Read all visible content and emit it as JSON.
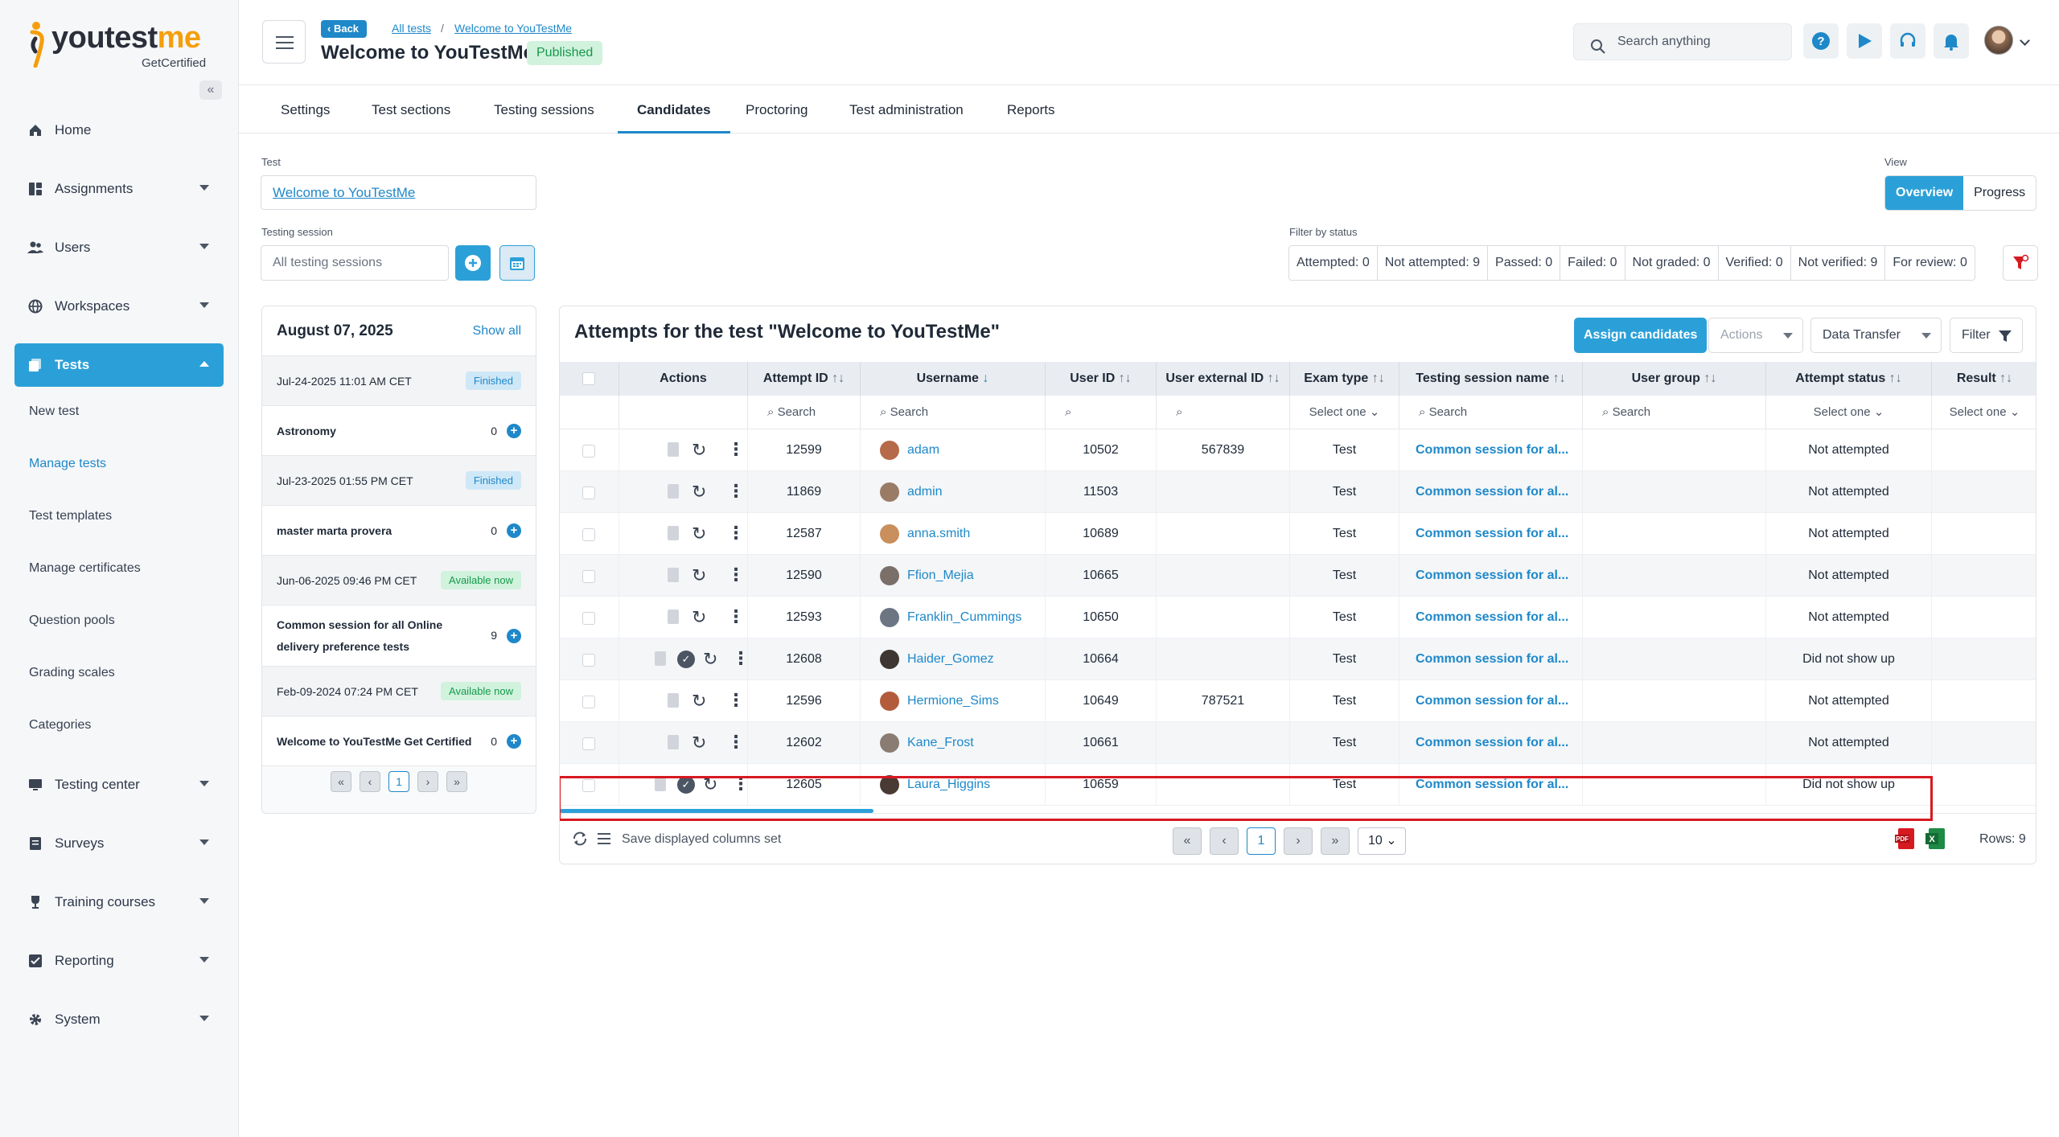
{
  "brand": {
    "name_a": "youtest",
    "name_b": "me",
    "sub": "GetCertified"
  },
  "sidebar": {
    "items": [
      {
        "label": "Home",
        "icon": "home-icon"
      },
      {
        "label": "Assignments",
        "icon": "assignments-icon"
      },
      {
        "label": "Users",
        "icon": "users-icon"
      },
      {
        "label": "Workspaces",
        "icon": "globe-icon"
      },
      {
        "label": "Tests",
        "icon": "tests-icon"
      }
    ],
    "tests_sub": [
      "New test",
      "Manage tests",
      "Test templates",
      "Manage certificates",
      "Question pools",
      "Grading scales",
      "Categories"
    ],
    "items_after": [
      {
        "label": "Testing center",
        "icon": "monitor-icon"
      },
      {
        "label": "Surveys",
        "icon": "survey-icon"
      },
      {
        "label": "Training courses",
        "icon": "trophy-icon"
      },
      {
        "label": "Reporting",
        "icon": "reporting-icon"
      },
      {
        "label": "System",
        "icon": "gear-icon"
      }
    ]
  },
  "header": {
    "back": "Back",
    "crumb1": "All tests",
    "crumb2": "Welcome to YouTestMe",
    "title": "Welcome to YouTestMe",
    "badge": "Published",
    "search_placeholder": "Search anything"
  },
  "tabs": [
    "Settings",
    "Test sections",
    "Testing sessions",
    "Candidates",
    "Proctoring",
    "Test administration",
    "Reports"
  ],
  "form": {
    "test_label": "Test",
    "test_value": "Welcome to YouTestMe",
    "session_label": "Testing session",
    "session_placeholder": "All testing sessions",
    "view_label": "View",
    "view_overview": "Overview",
    "view_progress": "Progress",
    "filter_label": "Filter by status",
    "statuses": [
      "Attempted: 0",
      "Not attempted: 9",
      "Passed: 0",
      "Failed: 0",
      "Not graded: 0",
      "Verified: 0",
      "Not verified: 9",
      "For review: 0"
    ]
  },
  "panel": {
    "date": "August 07, 2025",
    "show_all": "Show all",
    "sessions": [
      {
        "date": "Jul-24-2025 11:01 AM CET",
        "status": "Finished",
        "name": "Astronomy",
        "count": "0"
      },
      {
        "date": "Jul-23-2025 01:55 PM CET",
        "status": "Finished",
        "name": "master marta provera",
        "count": "0"
      },
      {
        "date": "Jun-06-2025 09:46 PM CET",
        "status": "Available now",
        "name": "Common session for all Online delivery preference tests",
        "count": "9"
      },
      {
        "date": "Feb-09-2024 07:24 PM CET",
        "status": "Available now",
        "name": "Welcome to YouTestMe Get Certified",
        "count": "0"
      }
    ],
    "page": "1"
  },
  "table": {
    "title": "Attempts for the test \"Welcome to YouTestMe\"",
    "assign": "Assign candidates",
    "actions": "Actions",
    "data_transfer": "Data Transfer",
    "filter": "Filter",
    "columns": [
      "Actions",
      "Attempt ID",
      "Username",
      "User ID",
      "User external ID",
      "Exam type",
      "Testing session name",
      "User group",
      "Attempt status",
      "Result"
    ],
    "search_placeholder": "Search",
    "select_one": "Select one",
    "rows": [
      {
        "attempt": "12599",
        "username": "adam",
        "user_id": "10502",
        "ext_id": "567839",
        "type": "Test",
        "session": "Common session for al...",
        "group": "",
        "status": "Not attempted",
        "graded": false,
        "avatar": "#b56a4a"
      },
      {
        "attempt": "11869",
        "username": "admin",
        "user_id": "11503",
        "ext_id": "",
        "type": "Test",
        "session": "Common session for al...",
        "group": "",
        "status": "Not attempted",
        "graded": false,
        "avatar": "#9a7b66"
      },
      {
        "attempt": "12587",
        "username": "anna.smith",
        "user_id": "10689",
        "ext_id": "",
        "type": "Test",
        "session": "Common session for al...",
        "group": "",
        "status": "Not attempted",
        "graded": false,
        "avatar": "#c98f5c"
      },
      {
        "attempt": "12590",
        "username": "Ffion_Mejia",
        "user_id": "10665",
        "ext_id": "",
        "type": "Test",
        "session": "Common session for al...",
        "group": "",
        "status": "Not attempted",
        "graded": false,
        "avatar": "#7b6f6a"
      },
      {
        "attempt": "12593",
        "username": "Franklin_Cummings",
        "user_id": "10650",
        "ext_id": "",
        "type": "Test",
        "session": "Common session for al...",
        "group": "",
        "status": "Not attempted",
        "graded": false,
        "avatar": "#6c7582"
      },
      {
        "attempt": "12608",
        "username": "Haider_Gomez",
        "user_id": "10664",
        "ext_id": "",
        "type": "Test",
        "session": "Common session for al...",
        "group": "",
        "status": "Did not show up",
        "graded": true,
        "avatar": "#3e3630"
      },
      {
        "attempt": "12596",
        "username": "Hermione_Sims",
        "user_id": "10649",
        "ext_id": "787521",
        "type": "Test",
        "session": "Common session for al...",
        "group": "",
        "status": "Not attempted",
        "graded": false,
        "avatar": "#b35c3c"
      },
      {
        "attempt": "12602",
        "username": "Kane_Frost",
        "user_id": "10661",
        "ext_id": "",
        "type": "Test",
        "session": "Common session for al...",
        "group": "",
        "status": "Not attempted",
        "graded": false,
        "avatar": "#8a7c72"
      },
      {
        "attempt": "12605",
        "username": "Laura_Higgins",
        "user_id": "10659",
        "ext_id": "",
        "type": "Test",
        "session": "Common session for al...",
        "group": "",
        "status": "Did not show up",
        "graded": true,
        "avatar": "#4a3a34"
      }
    ],
    "save_columns": "Save displayed columns set",
    "page": "1",
    "page_size": "10",
    "rows_total": "Rows: 9"
  },
  "colors": {
    "accent": "#2ba0d8",
    "link": "#1e88c9",
    "highlight": "#d71920"
  }
}
